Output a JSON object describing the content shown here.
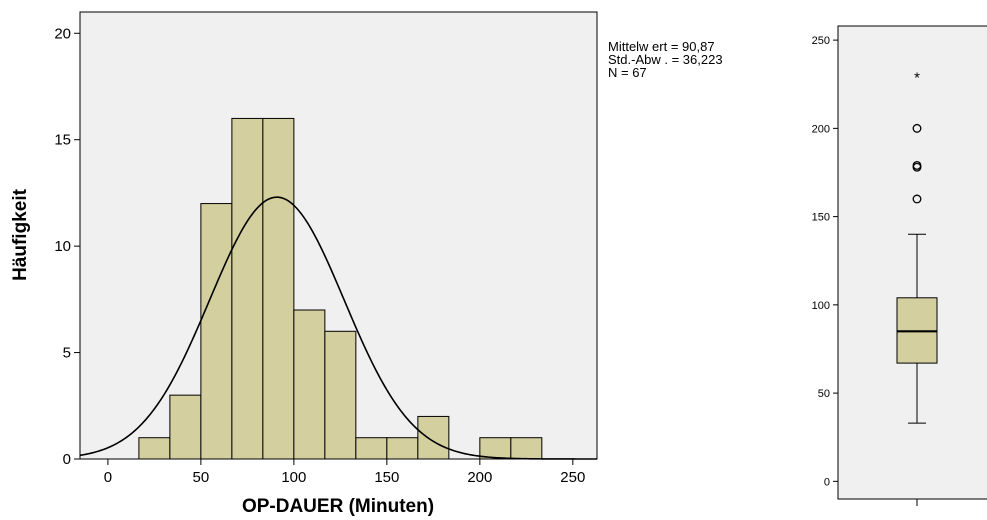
{
  "chart_data": [
    {
      "type": "bar",
      "subtype": "histogram",
      "xlabel": "OP-DAUER (Minuten)",
      "ylabel": "Häufigkeit",
      "xlim": [
        -15,
        263
      ],
      "ylim": [
        0,
        21
      ],
      "xticks": [
        0,
        50,
        100,
        150,
        200,
        250
      ],
      "yticks": [
        0,
        5,
        10,
        15,
        20
      ],
      "bin_width": 16.67,
      "bins": [
        {
          "start": 16.67,
          "end": 33.33,
          "value": 1
        },
        {
          "start": 33.33,
          "end": 50.0,
          "value": 3
        },
        {
          "start": 50.0,
          "end": 66.67,
          "value": 12
        },
        {
          "start": 66.67,
          "end": 83.33,
          "value": 16
        },
        {
          "start": 83.33,
          "end": 100.0,
          "value": 16
        },
        {
          "start": 100.0,
          "end": 116.67,
          "value": 7
        },
        {
          "start": 116.67,
          "end": 133.33,
          "value": 6
        },
        {
          "start": 133.33,
          "end": 150.0,
          "value": 1
        },
        {
          "start": 150.0,
          "end": 166.67,
          "value": 1
        },
        {
          "start": 166.67,
          "end": 183.33,
          "value": 2
        },
        {
          "start": 200.0,
          "end": 216.67,
          "value": 1
        },
        {
          "start": 216.67,
          "end": 233.33,
          "value": 1
        }
      ],
      "normal_curve": {
        "mean": 90.87,
        "sd": 36.223,
        "n": 67
      },
      "stats": {
        "mean_label": "Mittelw ert = 90,87",
        "sd_label": "Std.-Abw . = 36,223",
        "n_label": "N = 67"
      },
      "colors": {
        "bar_fill": "#d4cf9e",
        "plot_bg": "#f0f0f0"
      }
    },
    {
      "type": "box",
      "ylim": [
        -10,
        258
      ],
      "yticks": [
        0,
        50,
        100,
        150,
        200,
        250
      ],
      "whisker_low": 33,
      "q1": 67,
      "median": 85,
      "q3": 104,
      "whisker_high": 140,
      "outliers": [
        160,
        178,
        179,
        200
      ],
      "extremes": [
        230
      ],
      "colors": {
        "box_fill": "#d4cf9e",
        "plot_bg": "#f0f0f0"
      }
    }
  ]
}
